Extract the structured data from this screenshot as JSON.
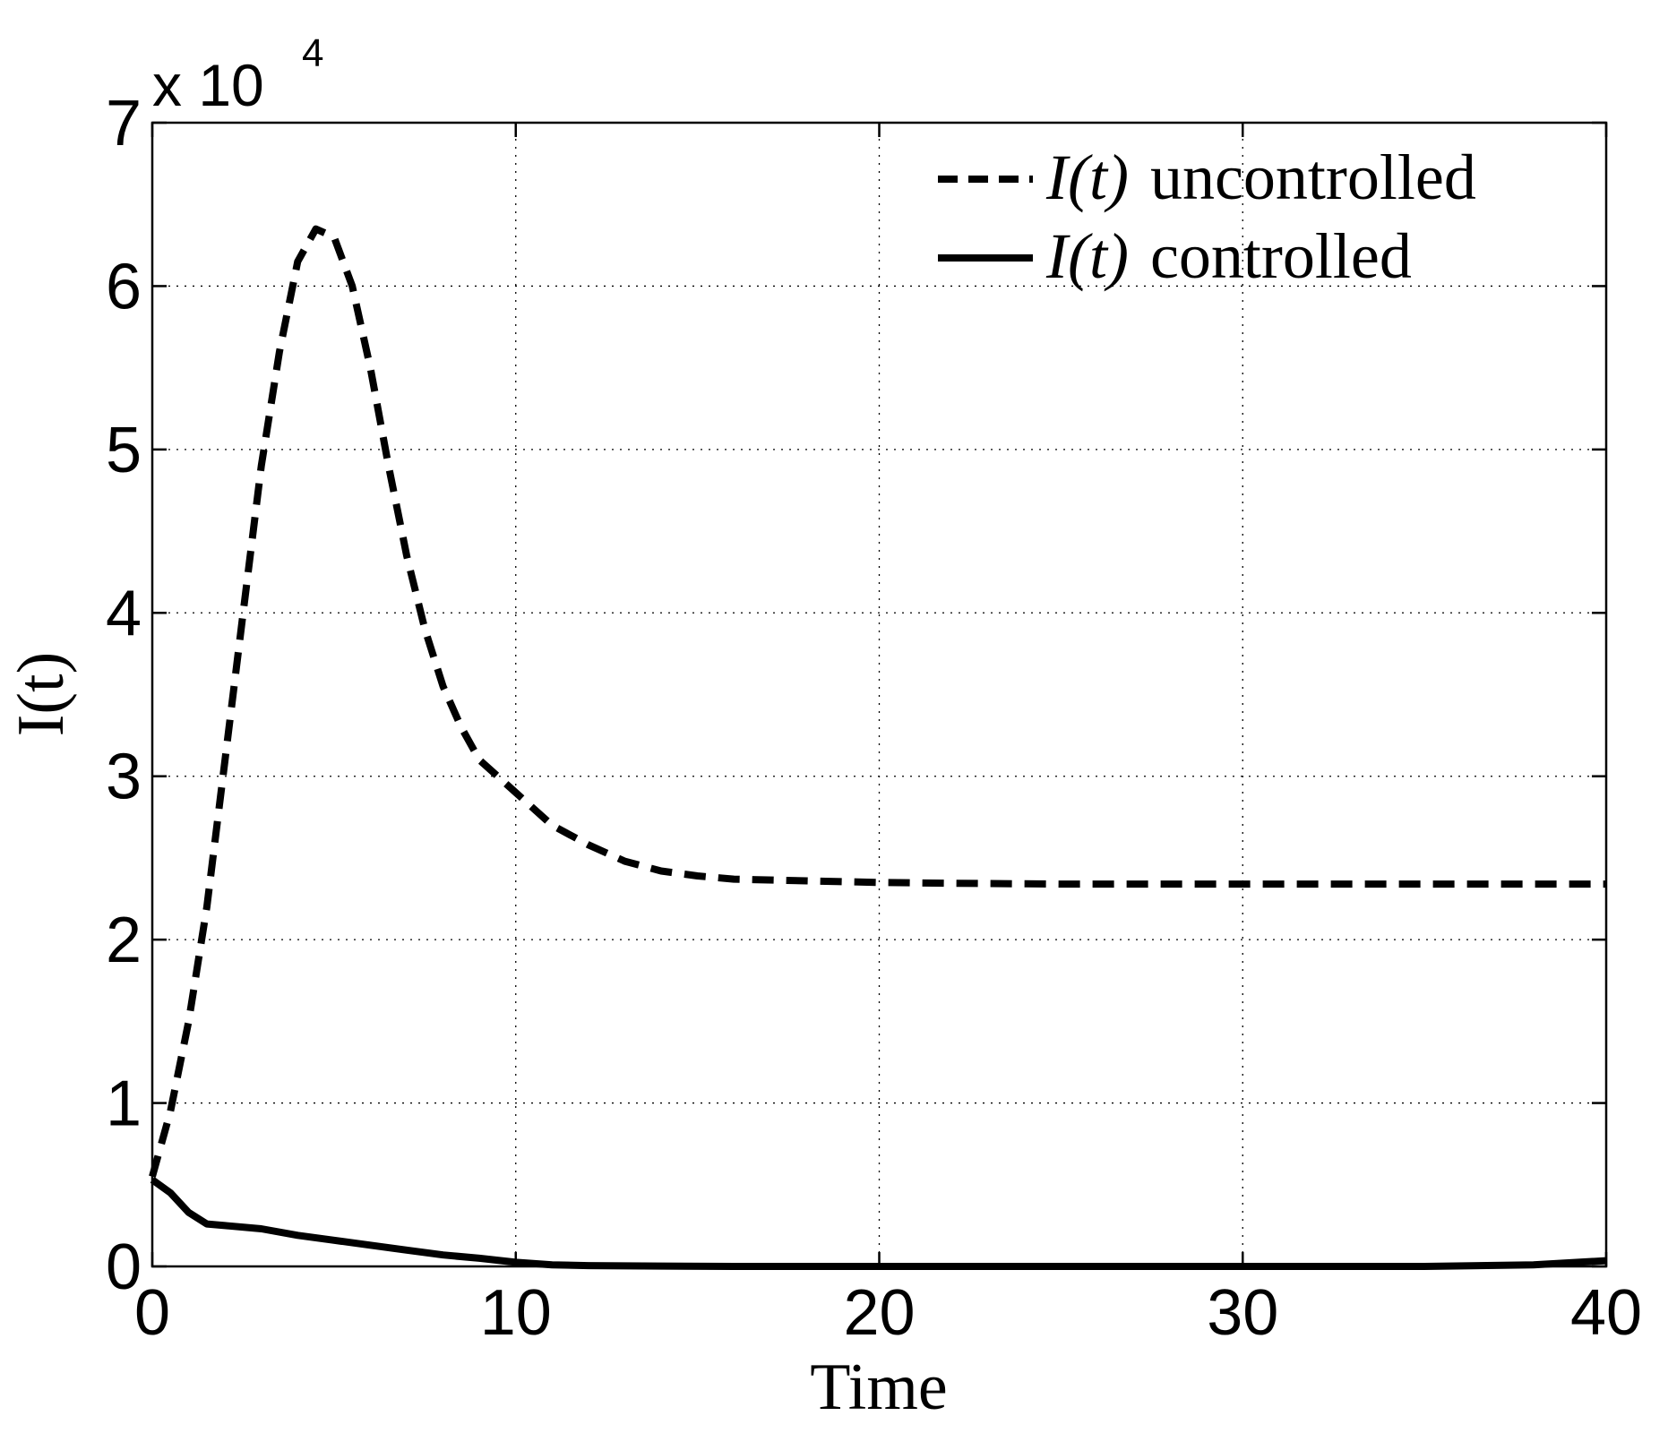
{
  "chart_data": {
    "type": "line",
    "title": "",
    "xlabel": "Time",
    "ylabel": "I(t)",
    "xlim": [
      0,
      40
    ],
    "ylim": [
      0,
      70000
    ],
    "xticks": [
      0,
      10,
      20,
      30,
      40
    ],
    "yticks": [
      0,
      10000,
      20000,
      30000,
      40000,
      50000,
      60000,
      70000
    ],
    "xtick_labels": [
      "0",
      "10",
      "20",
      "30",
      "40"
    ],
    "ytick_labels": [
      "0",
      "1",
      "2",
      "3",
      "4",
      "5",
      "6",
      "7"
    ],
    "y_exponent": {
      "base": "x 10",
      "power": "4"
    },
    "grid": true,
    "legend_position": "top-right",
    "series": [
      {
        "name": "uncontrolled",
        "legend_math": "I(t)",
        "legend_text": "uncontrolled",
        "style": "dashed",
        "color": "#000000",
        "x": [
          0,
          0.5,
          1,
          1.5,
          2,
          2.5,
          3,
          3.5,
          4,
          4.5,
          5,
          5.5,
          6,
          6.5,
          7,
          7.5,
          8,
          8.5,
          9,
          9.5,
          10,
          11,
          12,
          13,
          14,
          15,
          16,
          18,
          20,
          22,
          25,
          30,
          35,
          40
        ],
        "y": [
          5500,
          9500,
          15000,
          22000,
          31000,
          40000,
          49000,
          56000,
          61500,
          63500,
          63000,
          60000,
          55000,
          49000,
          43500,
          39000,
          35500,
          33000,
          31000,
          30000,
          29000,
          27000,
          25800,
          24800,
          24200,
          23900,
          23700,
          23600,
          23500,
          23450,
          23400,
          23400,
          23400,
          23400
        ]
      },
      {
        "name": "controlled",
        "legend_math": "I(t)",
        "legend_text": "controlled",
        "style": "solid",
        "color": "#000000",
        "x": [
          0,
          0.5,
          1,
          1.5,
          2,
          3,
          4,
          5,
          6,
          7,
          8,
          9,
          10,
          11,
          12,
          14,
          16,
          20,
          25,
          30,
          35,
          38,
          40
        ],
        "y": [
          5300,
          4500,
          3300,
          2600,
          2500,
          2300,
          1900,
          1600,
          1300,
          1000,
          700,
          500,
          250,
          100,
          50,
          20,
          0,
          0,
          0,
          0,
          0,
          100,
          350
        ]
      }
    ]
  }
}
